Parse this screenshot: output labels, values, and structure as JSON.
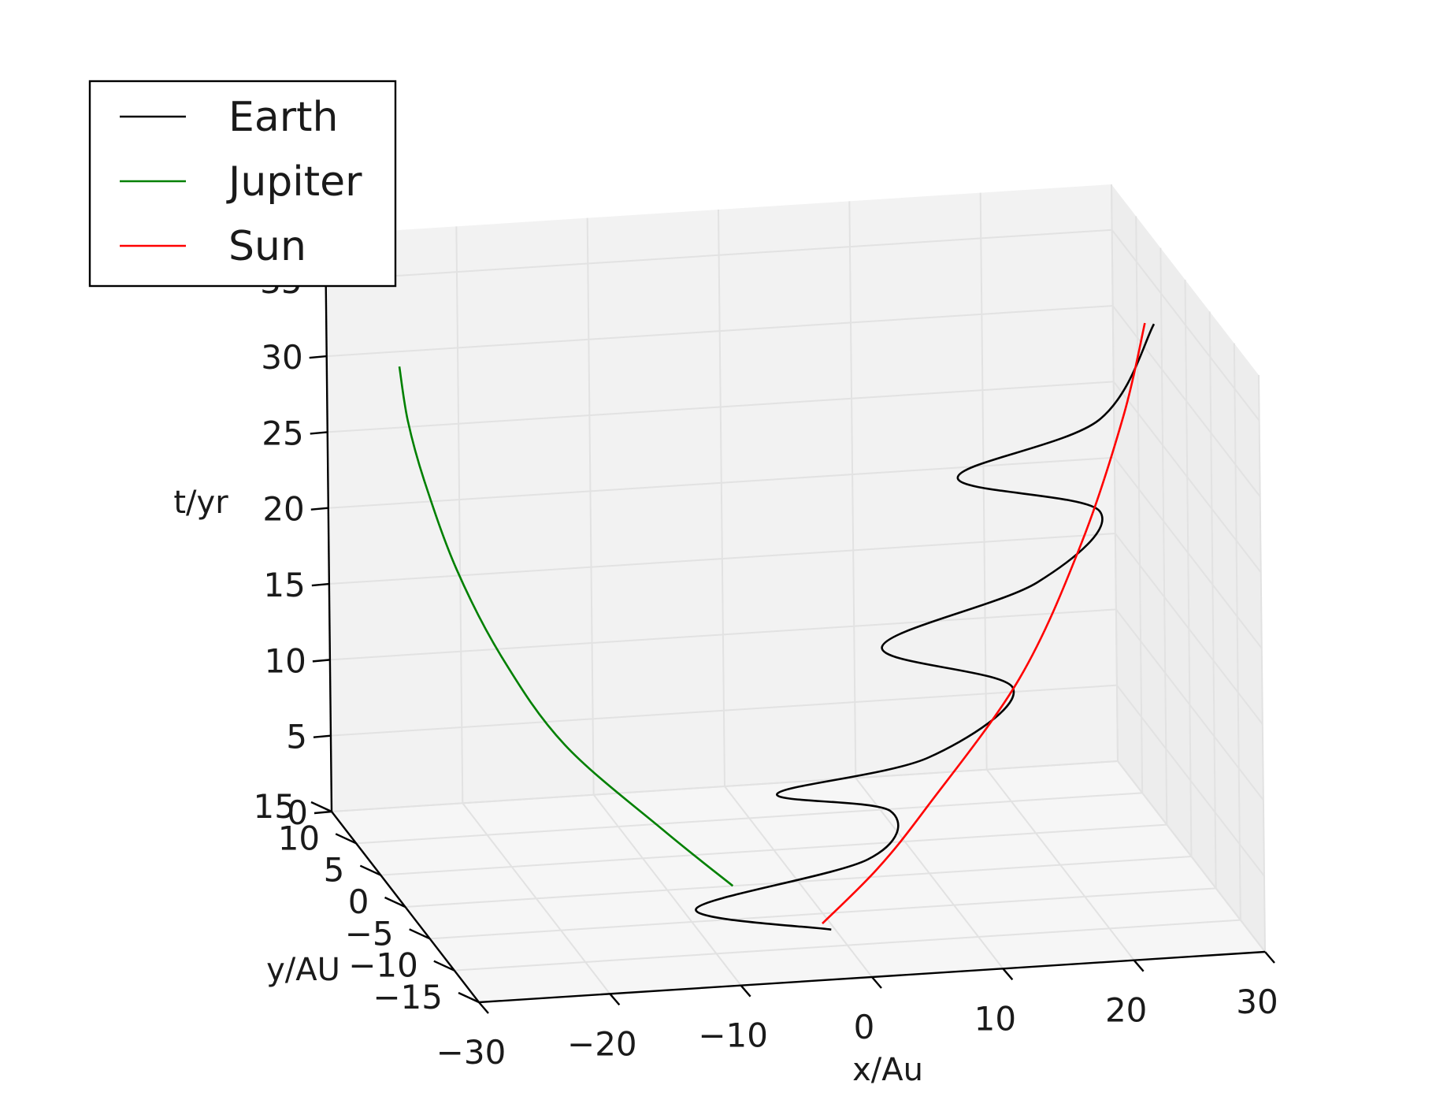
{
  "chart_data": {
    "type": "line",
    "projection": "3d",
    "xlabel": "x/Au",
    "ylabel": "y/AU",
    "zlabel": "t/yr",
    "xlim": [
      -30,
      30
    ],
    "ylim": [
      -15,
      15
    ],
    "zlim": [
      0,
      38
    ],
    "x_ticks": [
      "−30",
      "−20",
      "−10",
      "0",
      "10",
      "20",
      "30"
    ],
    "y_ticks": [
      "15",
      "10",
      "5",
      "0",
      "−5",
      "−10",
      "−15"
    ],
    "z_ticks": [
      "0",
      "5",
      "10",
      "15",
      "20",
      "25",
      "30",
      "35"
    ],
    "grid": true,
    "legend_position": "top-left",
    "series": [
      {
        "name": "Earth",
        "color": "#000000",
        "points": [
          [
            -0.3,
            -7.5,
            0.0
          ],
          [
            -9.3,
            -4.0,
            0.4
          ],
          [
            4.6,
            -1.9,
            2.0
          ],
          [
            7.8,
            2.0,
            3.4
          ],
          [
            -0.8,
            2.0,
            5.0
          ],
          [
            10.2,
            0.5,
            7.4
          ],
          [
            16.9,
            1.0,
            11.4
          ],
          [
            7.5,
            2.5,
            14.0
          ],
          [
            19.4,
            2.5,
            17.6
          ],
          [
            24.4,
            3.0,
            21.8
          ],
          [
            13.6,
            3.0,
            24.6
          ],
          [
            24.4,
            3.0,
            27.8
          ],
          [
            28.7,
            3.0,
            33.9
          ]
        ]
      },
      {
        "name": "Jupiter",
        "color": "#008000",
        "points": [
          [
            -5.0,
            0.0,
            0.0
          ],
          [
            -10.3,
            0.0,
            4.0
          ],
          [
            -17.7,
            0.0,
            10.0
          ],
          [
            -22.4,
            0.0,
            16.0
          ],
          [
            -25.8,
            0.0,
            22.0
          ],
          [
            -28.2,
            0.0,
            28.0
          ],
          [
            -29.4,
            0.0,
            32.0
          ],
          [
            -30.0,
            0.0,
            35.6
          ]
        ]
      },
      {
        "name": "Sun",
        "color": "#ff0000",
        "points": [
          [
            -0.6,
            -6.5,
            0.0
          ],
          [
            5.1,
            -2.5,
            1.6
          ],
          [
            9.9,
            0.0,
            4.4
          ],
          [
            17.6,
            1.5,
            11.8
          ],
          [
            22.8,
            2.5,
            20.0
          ],
          [
            26.3,
            3.0,
            28.0
          ],
          [
            28.0,
            3.0,
            34.0
          ]
        ]
      }
    ]
  }
}
